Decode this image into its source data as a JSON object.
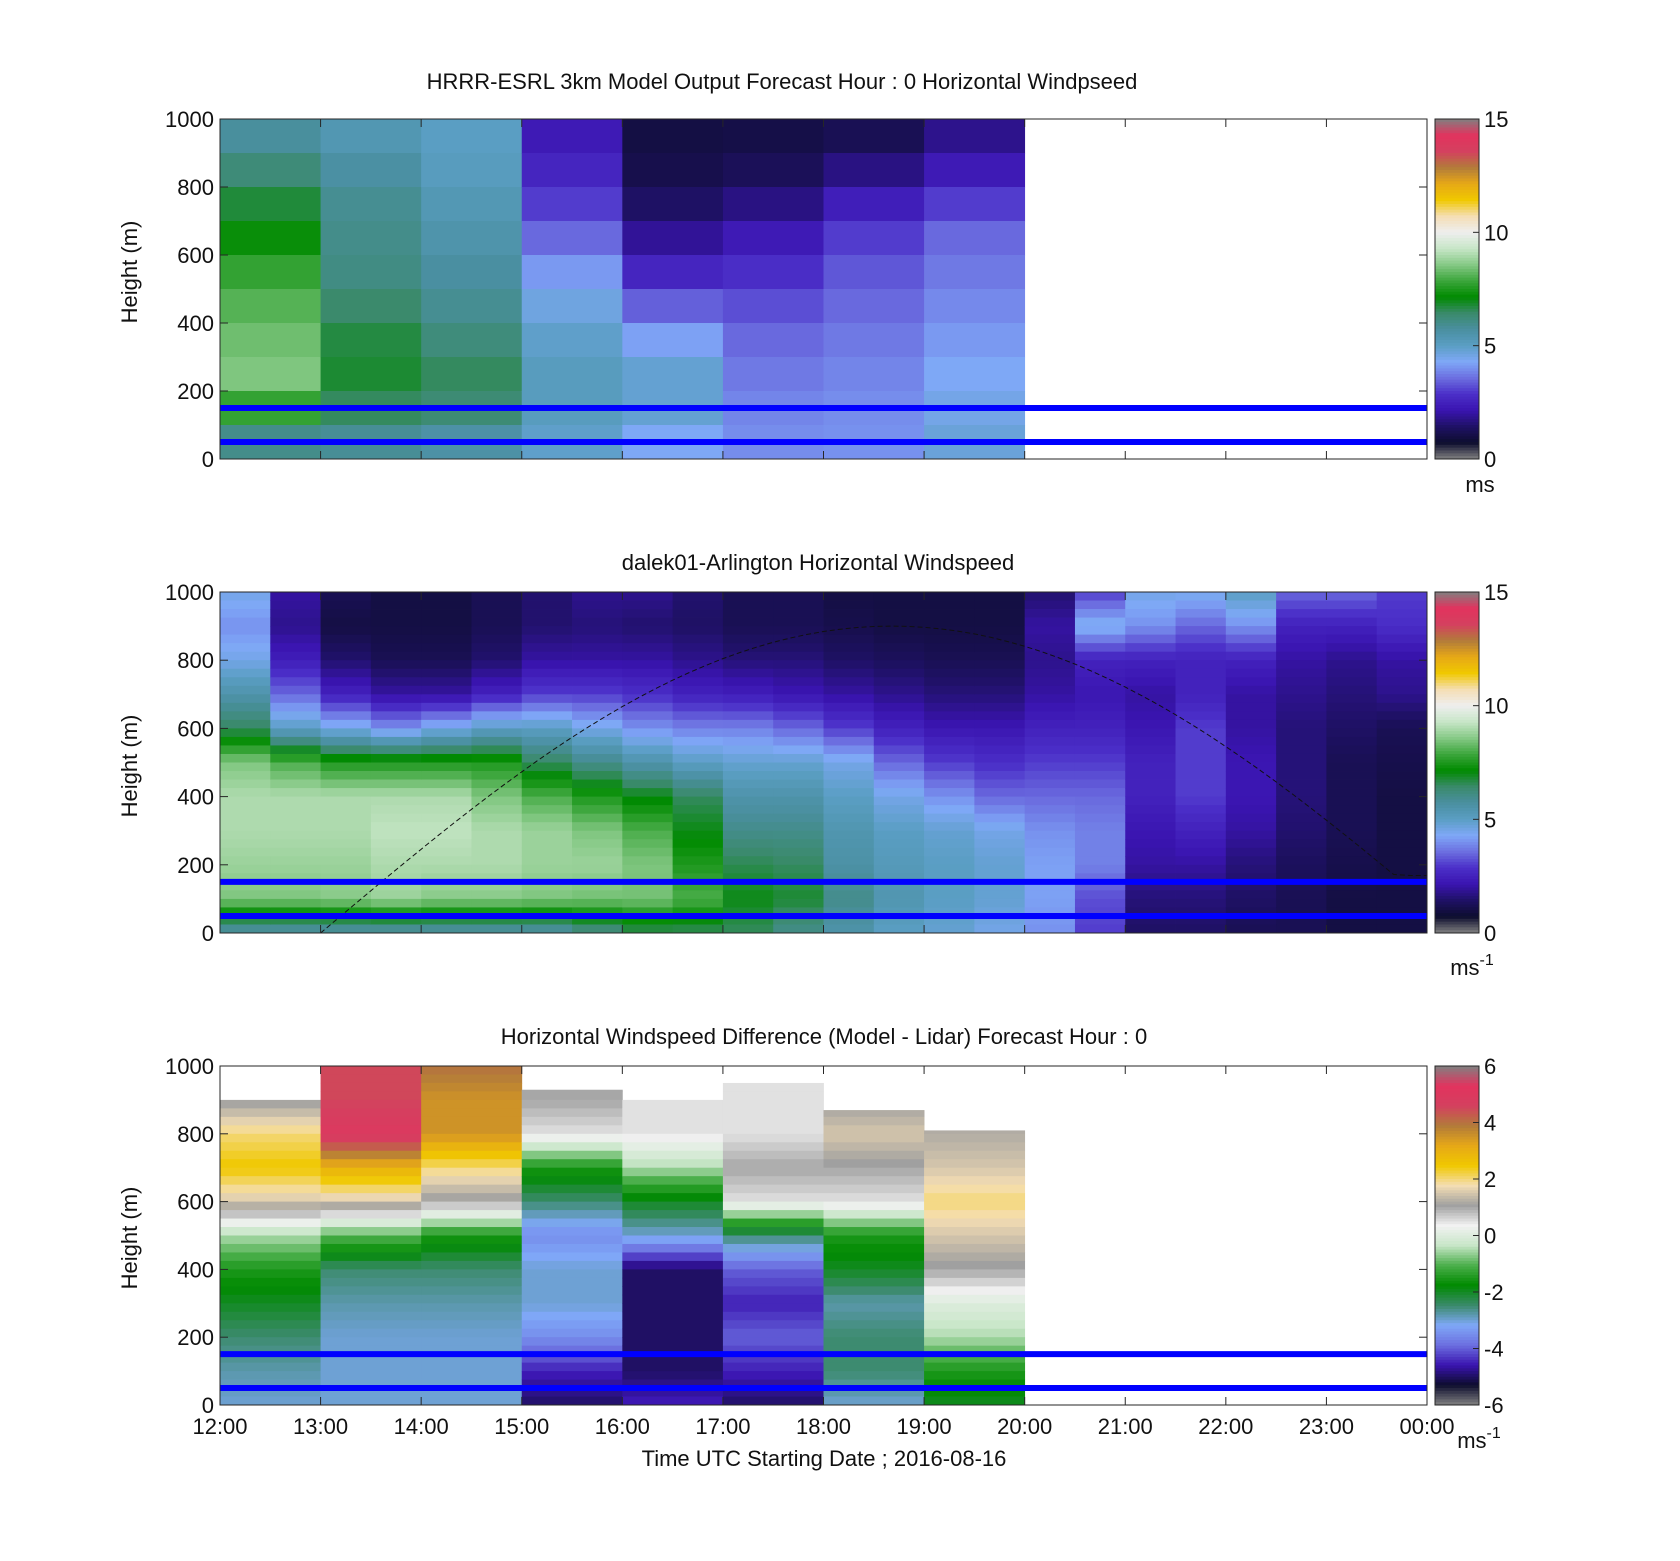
{
  "colors": {
    "speed_colormap": [
      "#808080",
      "#0d0d2e",
      "#1f1166",
      "#3a14b0",
      "#4b2fc8",
      "#6c6fe0",
      "#7fa8f7",
      "#5a9ec3",
      "#4a8fa0",
      "#3a8a6a",
      "#008a00",
      "#3ca63c",
      "#86c986",
      "#c8e6c8",
      "#eeeeee",
      "#f5deb3",
      "#f0c800",
      "#e6a817",
      "#b27b3a",
      "#d4405f",
      "#e2335e",
      "#808080"
    ],
    "diff_colormap": [
      "#808080",
      "#0d0d2e",
      "#3a14b0",
      "#6c6fe0",
      "#7fa8f7",
      "#3a8a6a",
      "#008a00",
      "#4caf4c",
      "#c8e6c8",
      "#f2f2f2",
      "#a0a0a0",
      "#f5deb3",
      "#f0c800",
      "#e6a817",
      "#b27b3a",
      "#d4405f",
      "#e2335e",
      "#808080"
    ],
    "guide_line": "#0000ff"
  },
  "chart_data": [
    {
      "type": "heatmap",
      "title": "HRRR-ESRL 3km Model Output   Forecast Hour : 0 Horizontal Windpseed",
      "xlabel": "",
      "ylabel": "Height (m)",
      "x_ticks": [
        "12:00",
        "13:00",
        "14:00",
        "15:00",
        "16:00",
        "17:00",
        "18:00",
        "19:00",
        "20:00",
        "21:00",
        "22:00",
        "23:00",
        "00:00"
      ],
      "x_tick_labels_shown": false,
      "y_ticks": [
        "0",
        "200",
        "400",
        "600",
        "800",
        "1000"
      ],
      "ylim": [
        0,
        1000
      ],
      "colorbar": {
        "ticks": [
          "0",
          "5",
          "10",
          "15"
        ],
        "range": [
          0,
          15
        ],
        "unit": "ms"
      },
      "horizontal_lines_m": [
        150,
        50
      ],
      "data_time_range": [
        "12:00",
        "20:00"
      ],
      "heights_m": [
        1000,
        900,
        800,
        700,
        600,
        500,
        400,
        300,
        200,
        100,
        0
      ],
      "columns": [
        {
          "start": "12:00",
          "values": [
            5.5,
            6.0,
            6.5,
            7.0,
            7.5,
            8.0,
            8.2,
            8.5,
            8.5,
            7.0,
            5.0
          ]
        },
        {
          "start": "13:00",
          "values": [
            5.2,
            5.5,
            5.8,
            6.0,
            6.0,
            6.2,
            6.6,
            6.8,
            6.8,
            6.2,
            5.5
          ]
        },
        {
          "start": "14:00",
          "values": [
            5.0,
            5.0,
            5.2,
            5.4,
            5.6,
            5.8,
            6.0,
            6.4,
            6.6,
            6.0,
            5.2
          ]
        },
        {
          "start": "15:00",
          "values": [
            2.2,
            2.4,
            2.8,
            3.2,
            3.8,
            4.4,
            4.8,
            5.0,
            5.2,
            5.0,
            4.8
          ]
        },
        {
          "start": "16:00",
          "values": [
            1.0,
            1.0,
            1.2,
            1.6,
            2.2,
            3.0,
            3.8,
            4.6,
            5.0,
            4.6,
            4.0
          ]
        },
        {
          "start": "17:00",
          "values": [
            1.0,
            1.1,
            1.4,
            2.0,
            2.6,
            3.0,
            3.4,
            3.6,
            3.8,
            3.9,
            4.0
          ]
        },
        {
          "start": "18:00",
          "values": [
            1.0,
            1.4,
            2.0,
            2.8,
            3.2,
            3.4,
            3.6,
            3.8,
            3.9,
            4.0,
            4.0
          ]
        },
        {
          "start": "19:00",
          "values": [
            1.6,
            2.0,
            2.6,
            3.4,
            3.6,
            3.8,
            4.0,
            4.2,
            4.4,
            4.6,
            4.8
          ]
        }
      ]
    },
    {
      "type": "heatmap",
      "title": "dalek01-Arlington  Horizontal Windspeed",
      "xlabel": "",
      "ylabel": "Height (m)",
      "x_ticks": [
        "12:00",
        "13:00",
        "14:00",
        "15:00",
        "16:00",
        "17:00",
        "18:00",
        "19:00",
        "20:00",
        "21:00",
        "22:00",
        "23:00",
        "00:00"
      ],
      "x_tick_labels_shown": false,
      "y_ticks": [
        "0",
        "200",
        "400",
        "600",
        "800",
        "1000"
      ],
      "ylim": [
        0,
        1000
      ],
      "colorbar": {
        "ticks": [
          "0",
          "5",
          "10",
          "15"
        ],
        "range": [
          0,
          15
        ],
        "unit": "ms",
        "unit_superscript": "-1"
      },
      "horizontal_lines_m": [
        150,
        50
      ],
      "data_time_range": [
        "12:00",
        "23:45"
      ],
      "heights_m": [
        1000,
        900,
        800,
        700,
        600,
        500,
        400,
        300,
        200,
        100,
        0
      ],
      "columns": [
        {
          "start": "12:00",
          "values": [
            4.5,
            4.0,
            4.5,
            5.5,
            6.5,
            8.5,
            9.0,
            9.0,
            8.8,
            8.5,
            5.5
          ]
        },
        {
          "start": "12:30",
          "values": [
            2.0,
            1.8,
            2.4,
            3.5,
            5.0,
            8.0,
            9.0,
            9.0,
            8.8,
            8.5,
            5.5
          ]
        },
        {
          "start": "13:00",
          "values": [
            1.2,
            1.0,
            1.5,
            2.5,
            4.5,
            7.5,
            9.0,
            9.0,
            8.8,
            8.6,
            5.5
          ]
        },
        {
          "start": "13:30",
          "values": [
            1.0,
            1.0,
            1.2,
            2.0,
            4.0,
            7.5,
            9.0,
            9.2,
            9.0,
            8.8,
            5.5
          ]
        },
        {
          "start": "14:00",
          "values": [
            1.0,
            1.0,
            1.2,
            2.0,
            4.5,
            7.5,
            9.0,
            9.2,
            9.0,
            8.6,
            5.5
          ]
        },
        {
          "start": "14:30",
          "values": [
            1.2,
            1.2,
            1.5,
            2.5,
            5.0,
            7.5,
            8.5,
            9.0,
            9.0,
            8.6,
            5.5
          ]
        },
        {
          "start": "15:00",
          "values": [
            1.5,
            1.5,
            2.0,
            3.0,
            5.0,
            6.5,
            8.0,
            8.8,
            8.8,
            8.5,
            5.5
          ]
        },
        {
          "start": "15:30",
          "values": [
            1.8,
            1.6,
            2.0,
            3.0,
            4.5,
            6.0,
            7.5,
            8.5,
            8.8,
            8.4,
            6.0
          ]
        },
        {
          "start": "16:00",
          "values": [
            1.8,
            1.5,
            2.0,
            2.8,
            4.0,
            5.5,
            7.0,
            8.0,
            8.5,
            8.4,
            6.5
          ]
        },
        {
          "start": "16:30",
          "values": [
            1.5,
            1.4,
            1.8,
            2.5,
            3.8,
            5.0,
            6.5,
            7.0,
            7.5,
            8.0,
            6.5
          ]
        },
        {
          "start": "17:00",
          "values": [
            1.2,
            1.2,
            1.6,
            2.4,
            3.8,
            4.8,
            5.5,
            6.0,
            6.6,
            7.0,
            6.5
          ]
        },
        {
          "start": "17:30",
          "values": [
            1.2,
            1.2,
            1.6,
            2.2,
            3.5,
            4.8,
            5.5,
            6.0,
            6.5,
            6.8,
            6.0
          ]
        },
        {
          "start": "18:00",
          "values": [
            1.0,
            1.1,
            1.4,
            2.0,
            3.0,
            4.5,
            5.0,
            5.4,
            5.6,
            6.0,
            5.5
          ]
        },
        {
          "start": "18:30",
          "values": [
            1.0,
            1.0,
            1.3,
            1.8,
            2.5,
            3.5,
            4.5,
            5.0,
            5.2,
            5.4,
            5.0
          ]
        },
        {
          "start": "19:00",
          "values": [
            1.0,
            1.0,
            1.2,
            1.6,
            2.2,
            3.0,
            4.0,
            4.8,
            5.0,
            5.0,
            4.8
          ]
        },
        {
          "start": "19:30",
          "values": [
            1.0,
            1.0,
            1.2,
            1.6,
            2.2,
            2.8,
            3.5,
            4.5,
            4.8,
            4.8,
            4.5
          ]
        },
        {
          "start": "20:00",
          "values": [
            1.5,
            2.0,
            1.8,
            2.0,
            2.5,
            3.0,
            3.5,
            4.0,
            4.2,
            4.2,
            4.0
          ]
        },
        {
          "start": "20:30",
          "values": [
            3.0,
            4.5,
            2.5,
            2.2,
            2.5,
            3.0,
            3.5,
            3.8,
            3.8,
            3.2,
            3.0
          ]
        },
        {
          "start": "21:00",
          "values": [
            4.5,
            4.0,
            2.5,
            2.0,
            2.2,
            2.5,
            2.5,
            2.2,
            2.0,
            1.6,
            1.4
          ]
        },
        {
          "start": "21:30",
          "values": [
            4.5,
            3.5,
            2.5,
            2.5,
            3.0,
            3.0,
            3.0,
            2.5,
            2.0,
            1.6,
            1.4
          ]
        },
        {
          "start": "22:00",
          "values": [
            5.0,
            4.0,
            2.5,
            2.0,
            2.0,
            2.2,
            2.2,
            2.0,
            1.6,
            1.4,
            1.2
          ]
        },
        {
          "start": "22:30",
          "values": [
            3.5,
            2.5,
            2.0,
            1.8,
            1.6,
            1.6,
            1.6,
            1.5,
            1.3,
            1.2,
            1.2
          ]
        },
        {
          "start": "23:00",
          "values": [
            3.5,
            2.5,
            1.8,
            1.6,
            1.4,
            1.2,
            1.2,
            1.2,
            1.1,
            1.0,
            1.0
          ]
        },
        {
          "start": "23:30",
          "values": [
            3.0,
            2.8,
            2.0,
            1.8,
            1.2,
            1.1,
            1.0,
            1.0,
            1.0,
            1.0,
            1.0
          ]
        }
      ]
    },
    {
      "type": "heatmap",
      "title": "Horizontal Windspeed Difference (Model - Lidar) Forecast Hour : 0",
      "xlabel": "Time UTC  Starting Date ; 2016-08-16",
      "ylabel": "Height (m)",
      "x_ticks": [
        "12:00",
        "13:00",
        "14:00",
        "15:00",
        "16:00",
        "17:00",
        "18:00",
        "19:00",
        "20:00",
        "21:00",
        "22:00",
        "23:00",
        "00:00"
      ],
      "x_tick_labels_shown": true,
      "y_ticks": [
        "0",
        "200",
        "400",
        "600",
        "800",
        "1000"
      ],
      "ylim": [
        0,
        1000
      ],
      "colorbar": {
        "ticks": [
          "-6",
          "-4",
          "-2",
          "0",
          "2",
          "4",
          "6"
        ],
        "range": [
          -6,
          6
        ],
        "unit": "ms",
        "unit_superscript": "-1"
      },
      "horizontal_lines_m": [
        150,
        50
      ],
      "data_time_range": [
        "12:00",
        "20:00"
      ],
      "heights_m": [
        1000,
        900,
        800,
        700,
        600,
        500,
        400,
        300,
        200,
        100,
        0
      ],
      "columns": [
        {
          "start": "12:00",
          "top_m": 900,
          "values": [
            null,
            1.0,
            2.0,
            2.5,
            1.5,
            -0.5,
            -1.5,
            -2.0,
            -2.5,
            -2.8,
            -3.0
          ]
        },
        {
          "start": "13:00",
          "top_m": 1000,
          "values": [
            4.5,
            4.5,
            5.0,
            3.0,
            1.5,
            -1.0,
            -2.5,
            -2.8,
            -3.0,
            -3.0,
            -3.0
          ]
        },
        {
          "start": "14:00",
          "top_m": 1000,
          "values": [
            4.0,
            3.5,
            3.5,
            2.0,
            1.0,
            -1.5,
            -2.5,
            -2.8,
            -3.0,
            -3.0,
            -3.0
          ]
        },
        {
          "start": "15:00",
          "top_m": 930,
          "values": [
            null,
            1.0,
            0.5,
            -1.5,
            -2.5,
            -3.5,
            -3.0,
            -3.0,
            -3.5,
            -4.5,
            -5.0
          ]
        },
        {
          "start": "16:00",
          "top_m": 900,
          "values": [
            null,
            0.5,
            0.5,
            -0.5,
            -2.0,
            -3.0,
            -5.0,
            -5.0,
            -5.0,
            -5.0,
            -4.5
          ]
        },
        {
          "start": "17:00",
          "top_m": 950,
          "values": [
            null,
            0.5,
            0.5,
            1.0,
            0.5,
            -2.5,
            -4.0,
            -4.5,
            -4.0,
            -4.5,
            -5.0
          ]
        },
        {
          "start": "18:00",
          "top_m": 870,
          "values": [
            null,
            1.0,
            1.5,
            1.0,
            0.5,
            -1.5,
            -2.0,
            -2.8,
            -2.5,
            -2.5,
            -3.0
          ]
        },
        {
          "start": "19:00",
          "top_m": 810,
          "values": [
            null,
            null,
            1.2,
            1.5,
            2.0,
            1.5,
            1.0,
            0.0,
            -0.5,
            -1.5,
            -2.0
          ]
        }
      ]
    }
  ]
}
